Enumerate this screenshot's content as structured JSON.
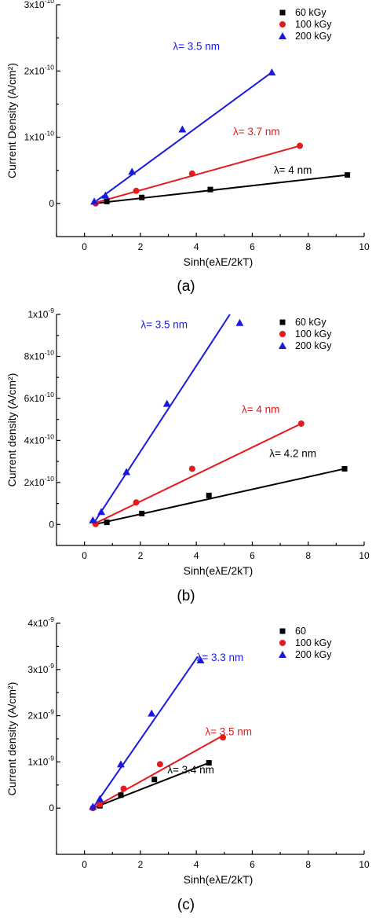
{
  "chart_data": [
    {
      "type": "scatter",
      "panel_label": "(a)",
      "xlabel": "Sinh(eλE/2kT)",
      "ylabel": "Current Density (A/cm²)",
      "xlim": [
        -1,
        10
      ],
      "ylim": [
        -5e-11,
        3e-10
      ],
      "x_ticks": [
        0,
        2,
        4,
        6,
        8,
        10
      ],
      "x_tick_labels": [
        "0",
        "2",
        "4",
        "6",
        "8",
        "10"
      ],
      "y_ticks": [
        0,
        1e-10,
        2e-10,
        3e-10
      ],
      "y_tick_mantissa": [
        "0",
        "1x10",
        "2x10",
        "3x10"
      ],
      "y_tick_exponent": [
        "",
        "-10",
        "-10",
        "-10"
      ],
      "grid": false,
      "legend_position": "top-right",
      "series": [
        {
          "name": "60 kGy",
          "color": "#000000",
          "marker": "square",
          "x": [
            0.8,
            2.05,
            4.5,
            9.4
          ],
          "y": [
            3e-12,
            9e-12,
            2.1e-11,
            4.3e-11
          ],
          "fit": [
            [
              0.35,
              0.0
            ],
            [
              9.4,
              4.3e-11
            ]
          ]
        },
        {
          "name": "100 kGy",
          "color": "#e41a1c",
          "marker": "circle",
          "x": [
            0.4,
            1.85,
            3.85,
            7.7
          ],
          "y": [
            0.0,
            1.9e-11,
            4.5e-11,
            8.7e-11
          ],
          "fit": [
            [
              0.3,
              0.0
            ],
            [
              7.7,
              8.7e-11
            ]
          ]
        },
        {
          "name": "200 kGy",
          "color": "#1a1adf",
          "marker": "triangle",
          "x": [
            0.35,
            0.75,
            1.7,
            3.5,
            6.7
          ],
          "y": [
            3e-12,
            1.2e-11,
            4.8e-11,
            1.12e-10,
            1.98e-10
          ],
          "fit": [
            [
              0.3,
              0.0
            ],
            [
              6.7,
              1.98e-10
            ]
          ]
        }
      ],
      "annotations": [
        {
          "text": "λ= 3.5 nm",
          "color": "#1a1adf",
          "x": 4.0,
          "y": 2.32e-10
        },
        {
          "text": "λ= 3.7 nm",
          "color": "#e41a1c",
          "x": 6.15,
          "y": 1.03e-10
        },
        {
          "text": "λ= 4 nm",
          "color": "#000000",
          "x": 7.45,
          "y": 4.5e-11
        }
      ]
    },
    {
      "type": "scatter",
      "panel_label": "(b)",
      "xlabel": "Sinh(eλE/2kT)",
      "ylabel": "Current density (A/cm²)",
      "xlim": [
        -1,
        10
      ],
      "ylim": [
        -1e-10,
        1e-09
      ],
      "x_ticks": [
        0,
        2,
        4,
        6,
        8,
        10
      ],
      "x_tick_labels": [
        "0",
        "2",
        "4",
        "6",
        "8",
        "10"
      ],
      "y_ticks": [
        0,
        2e-10,
        4e-10,
        6e-10,
        8e-10,
        1e-09
      ],
      "y_tick_mantissa": [
        "0",
        "2x10",
        "4x10",
        "6x10",
        "8x10",
        "1x10"
      ],
      "y_tick_exponent": [
        "",
        "-10",
        "-10",
        "-10",
        "-10",
        "-9"
      ],
      "grid": false,
      "legend_position": "top-right",
      "series": [
        {
          "name": "60 kGy",
          "color": "#000000",
          "marker": "square",
          "x": [
            0.8,
            2.05,
            4.45,
            9.3
          ],
          "y": [
            1e-11,
            5.2e-11,
            1.38e-10,
            2.65e-10
          ],
          "fit": [
            [
              0.35,
              0.0
            ],
            [
              9.3,
              2.65e-10
            ]
          ]
        },
        {
          "name": "100 kGy",
          "color": "#e41a1c",
          "marker": "circle",
          "x": [
            0.4,
            1.85,
            3.85,
            7.75
          ],
          "y": [
            2e-12,
            1.05e-10,
            2.65e-10,
            4.8e-10
          ],
          "fit": [
            [
              0.3,
              0.0
            ],
            [
              7.75,
              4.8e-10
            ]
          ]
        },
        {
          "name": "200 kGy",
          "color": "#1a1adf",
          "marker": "triangle",
          "x": [
            0.3,
            0.6,
            1.5,
            2.95,
            5.55
          ],
          "y": [
            2e-11,
            6e-11,
            2.5e-10,
            5.75e-10,
            9.6e-10
          ],
          "fit": [
            [
              0.3,
              0.0
            ],
            [
              5.2,
              1e-09
            ]
          ]
        }
      ],
      "annotations": [
        {
          "text": "λ= 3.5 nm",
          "color": "#1a1adf",
          "x": 2.85,
          "y": 9.35e-10
        },
        {
          "text": "λ= 4 nm",
          "color": "#e41a1c",
          "x": 6.3,
          "y": 5.3e-10
        },
        {
          "text": "λ= 4.2 nm",
          "color": "#000000",
          "x": 7.45,
          "y": 3.2e-10
        }
      ]
    },
    {
      "type": "scatter",
      "panel_label": "(c)",
      "xlabel": "Sinh(eλE/2kT)",
      "ylabel": "Current density (A/cm²)",
      "xlim": [
        -1,
        10
      ],
      "ylim": [
        -1e-09,
        4e-09
      ],
      "x_ticks": [
        0,
        2,
        4,
        6,
        8,
        10
      ],
      "x_tick_labels": [
        "0",
        "2",
        "4",
        "6",
        "8",
        "10"
      ],
      "y_ticks": [
        0,
        1e-09,
        2e-09,
        3e-09,
        4e-09
      ],
      "y_tick_mantissa": [
        "0",
        "1x10",
        "2x10",
        "3x10",
        "4x10"
      ],
      "y_tick_exponent": [
        "",
        "-9",
        "-9",
        "-9",
        "-9"
      ],
      "grid": false,
      "legend_position": "top-right",
      "series": [
        {
          "name": "60",
          "color": "#000000",
          "marker": "square",
          "x": [
            0.55,
            1.3,
            2.5,
            4.45
          ],
          "y": [
            5e-11,
            2.8e-10,
            6.2e-10,
            9.8e-10
          ],
          "fit": [
            [
              0.3,
              0.0
            ],
            [
              4.45,
              9.8e-10
            ]
          ]
        },
        {
          "name": "100 kGy",
          "color": "#e41a1c",
          "marker": "circle",
          "x": [
            0.3,
            0.55,
            1.4,
            2.7,
            4.95
          ],
          "y": [
            0.0,
            8e-11,
            4.2e-10,
            9.5e-10,
            1.53e-09
          ],
          "fit": [
            [
              0.3,
              0.0
            ],
            [
              4.95,
              1.57e-09
            ]
          ]
        },
        {
          "name": "200 kGy",
          "color": "#1a1adf",
          "marker": "triangle",
          "x": [
            0.3,
            0.55,
            1.3,
            2.4,
            4.15
          ],
          "y": [
            3e-11,
            2e-10,
            9.5e-10,
            2.05e-09,
            3.2e-09
          ],
          "fit": [
            [
              0.3,
              0.0
            ],
            [
              4.05,
              3.28e-09
            ]
          ]
        }
      ],
      "annotations": [
        {
          "text": "λ= 3.3 nm",
          "color": "#1a1adf",
          "x": 4.85,
          "y": 3.18e-09
        },
        {
          "text": "λ= 3.5 nm",
          "color": "#e41a1c",
          "x": 5.15,
          "y": 1.58e-09
        },
        {
          "text": "λ= 3.4 nm",
          "color": "#000000",
          "x": 3.8,
          "y": 7.5e-10
        }
      ]
    }
  ]
}
